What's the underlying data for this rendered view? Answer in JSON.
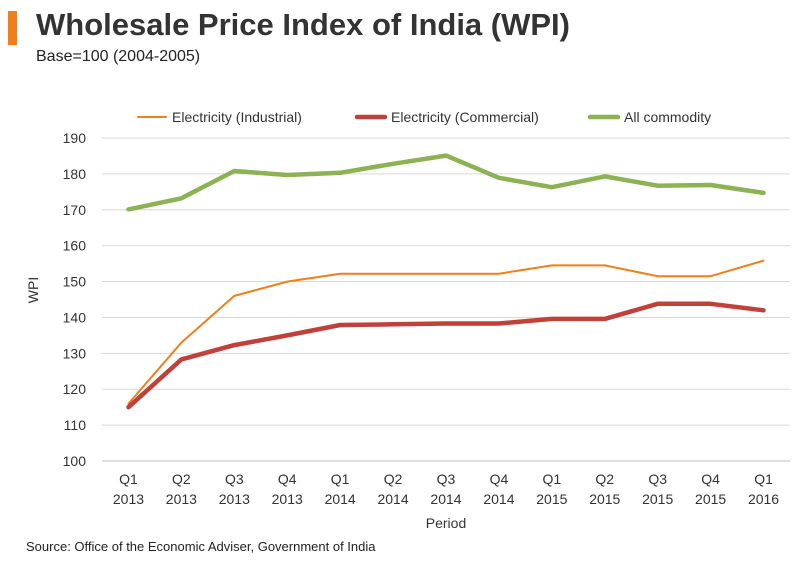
{
  "header": {
    "title": "Wholesale Price Index of India (WPI)",
    "subtitle": "Base=100 (2004-2005)"
  },
  "footer": {
    "source": "Source: Office of the Economic Adviser, Government of India"
  },
  "colors": {
    "accent": "#f07f1a",
    "industrial": "#f07f1a",
    "commercial": "#c0413a",
    "all_commodity": "#8db254"
  },
  "chart_data": {
    "type": "line",
    "title": "Wholesale Price Index of India (WPI)",
    "subtitle": "Base=100 (2004-2005)",
    "xlabel": "Period",
    "ylabel": "WPI",
    "ylim": [
      100,
      190
    ],
    "yticks": [
      100,
      110,
      120,
      130,
      140,
      150,
      160,
      170,
      180,
      190
    ],
    "grid": true,
    "legend_position": "top",
    "categories": [
      [
        "Q1",
        "2013"
      ],
      [
        "Q2",
        "2013"
      ],
      [
        "Q3",
        "2013"
      ],
      [
        "Q4",
        "2013"
      ],
      [
        "Q1",
        "2014"
      ],
      [
        "Q2",
        "2014"
      ],
      [
        "Q3",
        "2014"
      ],
      [
        "Q4",
        "2014"
      ],
      [
        "Q1",
        "2015"
      ],
      [
        "Q2",
        "2015"
      ],
      [
        "Q3",
        "2015"
      ],
      [
        "Q4",
        "2015"
      ],
      [
        "Q1",
        "2016"
      ]
    ],
    "series": [
      {
        "name": "Electricity (Industrial)",
        "color": "#f07f1a",
        "line": "thin",
        "values": [
          116,
          133,
          146,
          150,
          152.2,
          152.2,
          152.2,
          152.2,
          154.5,
          154.5,
          151.5,
          151.5,
          155.8
        ]
      },
      {
        "name": "Electricity (Commercial)",
        "color": "#c0413a",
        "line": "thick",
        "values": [
          115,
          128.3,
          132.3,
          135,
          137.9,
          138.1,
          138.3,
          138.3,
          139.6,
          139.6,
          143.8,
          143.8,
          142
        ]
      },
      {
        "name": "All commodity",
        "color": "#8db254",
        "line": "thick",
        "values": [
          170.1,
          173.2,
          180.8,
          179.7,
          180.3,
          182.8,
          185.1,
          178.9,
          176.3,
          179.3,
          176.7,
          176.9,
          174.7
        ]
      }
    ]
  }
}
